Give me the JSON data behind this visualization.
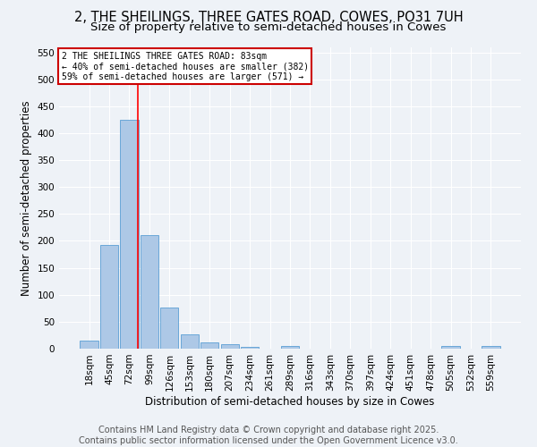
{
  "title1": "2, THE SHEILINGS, THREE GATES ROAD, COWES, PO31 7UH",
  "title2": "Size of property relative to semi-detached houses in Cowes",
  "xlabel": "Distribution of semi-detached houses by size in Cowes",
  "ylabel": "Number of semi-detached properties",
  "categories": [
    "18sqm",
    "45sqm",
    "72sqm",
    "99sqm",
    "126sqm",
    "153sqm",
    "180sqm",
    "207sqm",
    "234sqm",
    "261sqm",
    "289sqm",
    "316sqm",
    "343sqm",
    "370sqm",
    "397sqm",
    "424sqm",
    "451sqm",
    "478sqm",
    "505sqm",
    "532sqm",
    "559sqm"
  ],
  "values": [
    15,
    193,
    425,
    210,
    77,
    27,
    12,
    9,
    4,
    0,
    5,
    0,
    0,
    0,
    0,
    0,
    0,
    0,
    5,
    0,
    5
  ],
  "bar_color": "#adc8e6",
  "bar_edge_color": "#5a9fd4",
  "annotation_text": "2 THE SHEILINGS THREE GATES ROAD: 83sqm\n← 40% of semi-detached houses are smaller (382)\n59% of semi-detached houses are larger (571) →",
  "annotation_box_color": "#ffffff",
  "annotation_box_edge": "#cc0000",
  "footer1": "Contains HM Land Registry data © Crown copyright and database right 2025.",
  "footer2": "Contains public sector information licensed under the Open Government Licence v3.0.",
  "ylim": [
    0,
    560
  ],
  "background_color": "#eef2f7",
  "grid_color": "#ffffff",
  "title_fontsize": 10.5,
  "subtitle_fontsize": 9.5,
  "axis_label_fontsize": 8.5,
  "tick_fontsize": 7.5,
  "footer_fontsize": 7.0
}
